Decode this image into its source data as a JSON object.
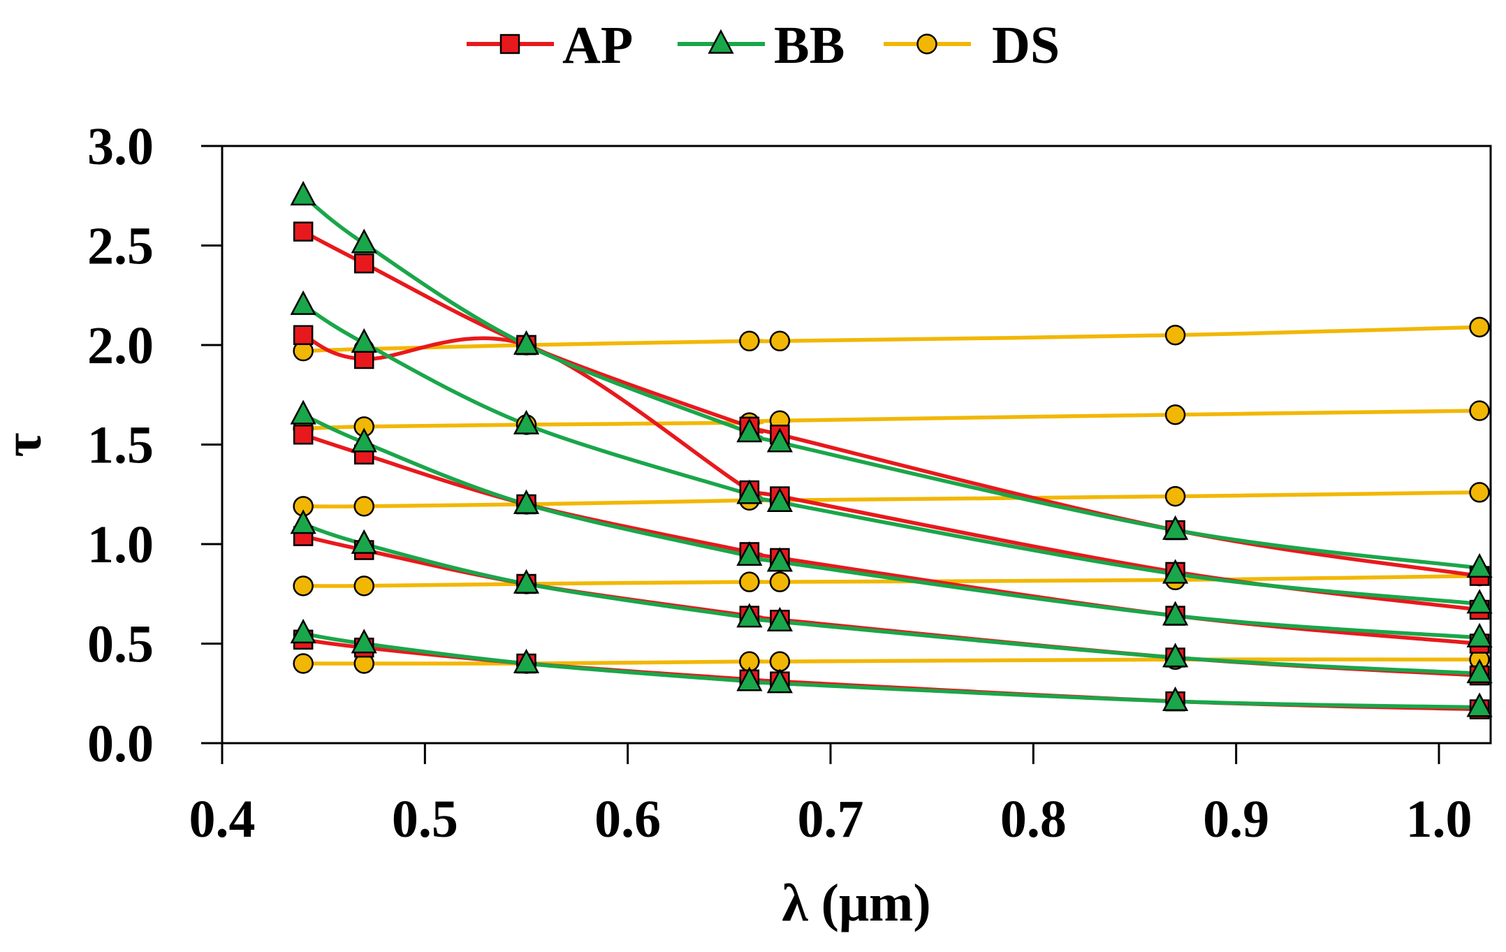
{
  "chart_data": {
    "type": "line",
    "title": "",
    "xlabel": "λ (μm)",
    "ylabel": "τ",
    "xlim": [
      0.4,
      1.05
    ],
    "ylim": [
      0.0,
      3.0
    ],
    "x_ticks": [
      "0.4",
      "0.5",
      "0.6",
      "0.7",
      "0.8",
      "0.9",
      "1.0"
    ],
    "x_tick_values": [
      0.4,
      0.5,
      0.6,
      0.7,
      0.8,
      0.9,
      1.0
    ],
    "y_ticks": [
      "0.0",
      "0.5",
      "1.0",
      "1.5",
      "2.0",
      "2.5",
      "3.0"
    ],
    "y_tick_values": [
      0.0,
      0.5,
      1.0,
      1.5,
      2.0,
      2.5,
      3.0
    ],
    "grid": false,
    "legend_position": "top-center",
    "x": [
      0.44,
      0.47,
      0.55,
      0.66,
      0.675,
      0.87,
      1.02
    ],
    "series": [
      {
        "name": "AP",
        "color": "#e8191c",
        "marker": "square",
        "curves": [
          [
            0.52,
            0.48,
            0.4,
            0.32,
            0.31,
            0.21,
            0.17
          ],
          [
            1.04,
            0.97,
            0.8,
            0.64,
            0.62,
            0.43,
            0.34
          ],
          [
            1.55,
            1.45,
            1.2,
            0.96,
            0.93,
            0.64,
            0.5
          ],
          [
            2.05,
            1.93,
            2.0,
            1.27,
            1.24,
            0.86,
            0.67
          ],
          [
            2.57,
            2.41,
            2.0,
            1.59,
            1.55,
            1.07,
            0.84
          ]
        ]
      },
      {
        "name": "BB",
        "color": "#1aa64a",
        "marker": "triangle",
        "curves": [
          [
            0.55,
            0.5,
            0.4,
            0.31,
            0.3,
            0.21,
            0.18
          ],
          [
            1.1,
            1.0,
            0.8,
            0.63,
            0.61,
            0.43,
            0.35
          ],
          [
            1.65,
            1.51,
            1.2,
            0.94,
            0.91,
            0.64,
            0.53
          ],
          [
            2.2,
            2.01,
            1.6,
            1.25,
            1.21,
            0.85,
            0.7
          ],
          [
            2.75,
            2.51,
            2.0,
            1.56,
            1.51,
            1.07,
            0.88
          ]
        ]
      },
      {
        "name": "DS",
        "color": "#f2b705",
        "marker": "circle",
        "curves": [
          [
            0.4,
            0.4,
            0.4,
            0.41,
            0.41,
            0.42,
            0.42
          ],
          [
            0.79,
            0.79,
            0.8,
            0.81,
            0.81,
            0.82,
            0.84
          ],
          [
            1.19,
            1.19,
            1.2,
            1.22,
            1.22,
            1.24,
            1.26
          ],
          [
            1.58,
            1.59,
            1.6,
            1.61,
            1.62,
            1.65,
            1.67
          ],
          [
            1.97,
            1.98,
            2.0,
            2.02,
            2.02,
            2.05,
            2.09
          ]
        ]
      }
    ]
  }
}
